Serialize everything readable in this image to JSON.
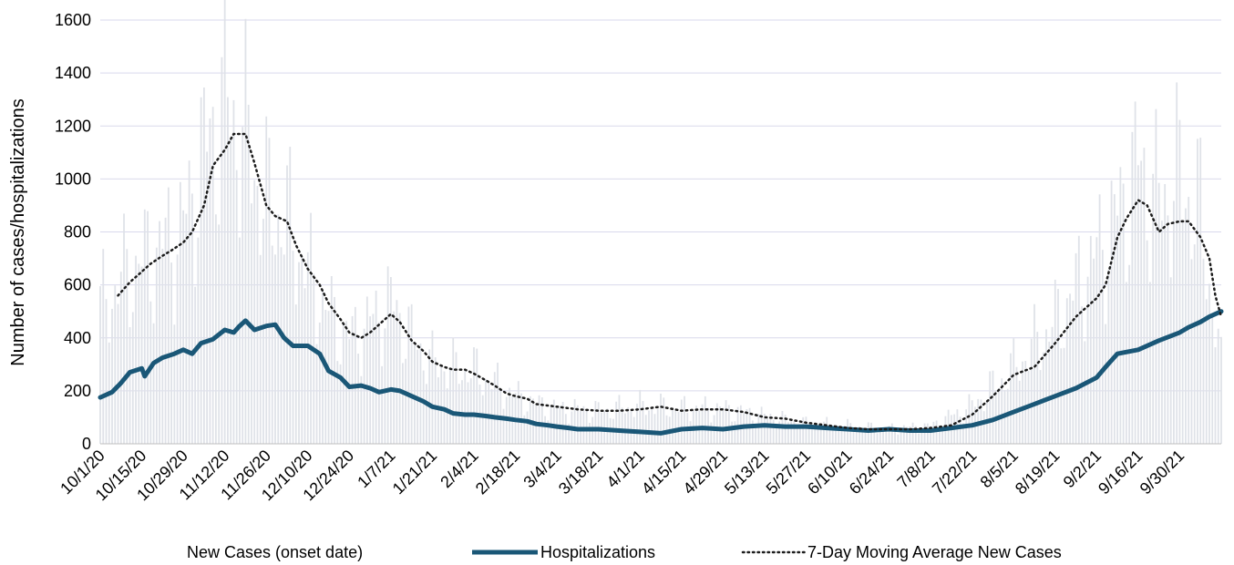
{
  "chart_data": {
    "type": "line",
    "title": "",
    "xlabel": "",
    "ylabel": "Number of cases/hospitalizations",
    "ylim": [
      0,
      1600
    ],
    "yticks": [
      0,
      200,
      400,
      600,
      800,
      1000,
      1200,
      1400,
      1600
    ],
    "grid": true,
    "legend_position": "bottom",
    "date_range": [
      "10/1/20",
      "10/14/21"
    ],
    "categories": [
      "10/1/20",
      "10/15/20",
      "10/29/20",
      "11/12/20",
      "11/26/20",
      "12/10/20",
      "12/24/20",
      "1/7/21",
      "1/21/21",
      "2/4/21",
      "2/18/21",
      "3/4/21",
      "3/18/21",
      "4/1/21",
      "4/15/21",
      "4/29/21",
      "5/13/21",
      "5/27/21",
      "6/10/21",
      "6/24/21",
      "7/8/21",
      "7/22/21",
      "8/5/21",
      "8/19/21",
      "9/2/21",
      "9/16/21",
      "9/30/21"
    ],
    "series": [
      {
        "name": "New Cases (onset date)",
        "style": "thin bars",
        "color": "#dfe2e8",
        "points": [
          [
            "10/1/20",
            530
          ],
          [
            "10/8/20",
            650
          ],
          [
            "10/15/20",
            720
          ],
          [
            "10/22/20",
            780
          ],
          [
            "10/29/20",
            850
          ],
          [
            "11/5/20",
            1150
          ],
          [
            "11/12/20",
            1350
          ],
          [
            "11/19/20",
            1200
          ],
          [
            "11/26/20",
            950
          ],
          [
            "12/3/20",
            880
          ],
          [
            "12/10/20",
            680
          ],
          [
            "12/17/20",
            520
          ],
          [
            "12/24/20",
            420
          ],
          [
            "12/31/20",
            480
          ],
          [
            "1/7/21",
            560
          ],
          [
            "1/14/21",
            420
          ],
          [
            "1/21/21",
            320
          ],
          [
            "1/28/21",
            300
          ],
          [
            "2/4/21",
            290
          ],
          [
            "2/11/21",
            240
          ],
          [
            "2/18/21",
            190
          ],
          [
            "2/25/21",
            160
          ],
          [
            "3/4/21",
            140
          ],
          [
            "3/18/21",
            130
          ],
          [
            "4/1/21",
            150
          ],
          [
            "4/15/21",
            140
          ],
          [
            "4/29/21",
            140
          ],
          [
            "5/13/21",
            110
          ],
          [
            "5/27/21",
            80
          ],
          [
            "6/10/21",
            70
          ],
          [
            "6/24/21",
            60
          ],
          [
            "7/8/21",
            70
          ],
          [
            "7/22/21",
            150
          ],
          [
            "8/5/21",
            300
          ],
          [
            "8/19/21",
            480
          ],
          [
            "9/2/21",
            750
          ],
          [
            "9/9/21",
            900
          ],
          [
            "9/16/21",
            1100
          ],
          [
            "9/23/21",
            950
          ],
          [
            "9/30/21",
            1050
          ],
          [
            "10/7/21",
            900
          ],
          [
            "10/14/21",
            300
          ]
        ]
      },
      {
        "name": "Hospitalizations",
        "style": "thick line",
        "color": "#1a5777",
        "points": [
          [
            "10/1/20",
            175
          ],
          [
            "10/5/20",
            195
          ],
          [
            "10/8/20",
            230
          ],
          [
            "10/11/20",
            270
          ],
          [
            "10/15/20",
            285
          ],
          [
            "10/16/20",
            255
          ],
          [
            "10/19/20",
            305
          ],
          [
            "10/22/20",
            325
          ],
          [
            "10/26/20",
            340
          ],
          [
            "10/29/20",
            355
          ],
          [
            "11/1/20",
            340
          ],
          [
            "11/4/20",
            380
          ],
          [
            "11/8/20",
            395
          ],
          [
            "11/12/20",
            430
          ],
          [
            "11/15/20",
            420
          ],
          [
            "11/17/20",
            445
          ],
          [
            "11/19/20",
            465
          ],
          [
            "11/22/20",
            430
          ],
          [
            "11/26/20",
            445
          ],
          [
            "11/29/20",
            450
          ],
          [
            "12/2/20",
            400
          ],
          [
            "12/5/20",
            370
          ],
          [
            "12/10/20",
            370
          ],
          [
            "12/14/20",
            340
          ],
          [
            "12/17/20",
            275
          ],
          [
            "12/21/20",
            250
          ],
          [
            "12/24/20",
            215
          ],
          [
            "12/28/20",
            220
          ],
          [
            "12/31/20",
            210
          ],
          [
            "1/3/21",
            195
          ],
          [
            "1/7/21",
            205
          ],
          [
            "1/10/21",
            200
          ],
          [
            "1/14/21",
            180
          ],
          [
            "1/18/21",
            160
          ],
          [
            "1/21/21",
            140
          ],
          [
            "1/25/21",
            130
          ],
          [
            "1/28/21",
            115
          ],
          [
            "2/1/21",
            110
          ],
          [
            "2/4/21",
            110
          ],
          [
            "2/8/21",
            105
          ],
          [
            "2/11/21",
            100
          ],
          [
            "2/15/21",
            95
          ],
          [
            "2/18/21",
            90
          ],
          [
            "2/22/21",
            85
          ],
          [
            "2/25/21",
            75
          ],
          [
            "3/1/21",
            70
          ],
          [
            "3/4/21",
            65
          ],
          [
            "3/8/21",
            60
          ],
          [
            "3/11/21",
            55
          ],
          [
            "3/18/21",
            55
          ],
          [
            "3/25/21",
            50
          ],
          [
            "4/1/21",
            45
          ],
          [
            "4/8/21",
            40
          ],
          [
            "4/15/21",
            55
          ],
          [
            "4/22/21",
            60
          ],
          [
            "4/29/21",
            55
          ],
          [
            "5/6/21",
            65
          ],
          [
            "5/13/21",
            70
          ],
          [
            "5/20/21",
            65
          ],
          [
            "5/27/21",
            65
          ],
          [
            "6/3/21",
            60
          ],
          [
            "6/10/21",
            55
          ],
          [
            "6/17/21",
            50
          ],
          [
            "6/24/21",
            55
          ],
          [
            "7/1/21",
            50
          ],
          [
            "7/8/21",
            50
          ],
          [
            "7/15/21",
            60
          ],
          [
            "7/22/21",
            70
          ],
          [
            "7/29/21",
            90
          ],
          [
            "8/5/21",
            120
          ],
          [
            "8/12/21",
            150
          ],
          [
            "8/19/21",
            180
          ],
          [
            "8/26/21",
            210
          ],
          [
            "9/2/21",
            250
          ],
          [
            "9/5/21",
            290
          ],
          [
            "9/9/21",
            340
          ],
          [
            "9/16/21",
            355
          ],
          [
            "9/23/21",
            390
          ],
          [
            "9/30/21",
            420
          ],
          [
            "10/3/21",
            440
          ],
          [
            "10/7/21",
            460
          ],
          [
            "10/10/21",
            480
          ],
          [
            "10/14/21",
            500
          ]
        ]
      },
      {
        "name": "7-Day Moving Average New Cases",
        "style": "dotted line",
        "color": "#1c1c1c",
        "points": [
          [
            "10/7/20",
            560
          ],
          [
            "10/11/20",
            610
          ],
          [
            "10/15/20",
            650
          ],
          [
            "10/18/20",
            680
          ],
          [
            "10/22/20",
            710
          ],
          [
            "10/25/20",
            730
          ],
          [
            "10/29/20",
            760
          ],
          [
            "11/1/20",
            800
          ],
          [
            "11/5/20",
            900
          ],
          [
            "11/8/20",
            1050
          ],
          [
            "11/12/20",
            1110
          ],
          [
            "11/15/20",
            1170
          ],
          [
            "11/19/20",
            1170
          ],
          [
            "11/22/20",
            1060
          ],
          [
            "11/26/20",
            900
          ],
          [
            "11/29/20",
            860
          ],
          [
            "12/3/20",
            840
          ],
          [
            "12/6/20",
            750
          ],
          [
            "12/10/20",
            660
          ],
          [
            "12/14/20",
            600
          ],
          [
            "12/17/20",
            530
          ],
          [
            "12/21/20",
            470
          ],
          [
            "12/24/20",
            420
          ],
          [
            "12/28/20",
            400
          ],
          [
            "12/31/20",
            420
          ],
          [
            "1/3/21",
            450
          ],
          [
            "1/7/21",
            490
          ],
          [
            "1/10/21",
            460
          ],
          [
            "1/14/21",
            390
          ],
          [
            "1/18/21",
            350
          ],
          [
            "1/21/21",
            310
          ],
          [
            "1/25/21",
            290
          ],
          [
            "1/28/21",
            280
          ],
          [
            "2/1/21",
            280
          ],
          [
            "2/4/21",
            265
          ],
          [
            "2/8/21",
            240
          ],
          [
            "2/11/21",
            220
          ],
          [
            "2/15/21",
            190
          ],
          [
            "2/18/21",
            180
          ],
          [
            "2/22/21",
            170
          ],
          [
            "2/25/21",
            150
          ],
          [
            "3/4/21",
            140
          ],
          [
            "3/11/21",
            130
          ],
          [
            "3/18/21",
            125
          ],
          [
            "3/25/21",
            125
          ],
          [
            "4/1/21",
            130
          ],
          [
            "4/8/21",
            140
          ],
          [
            "4/15/21",
            125
          ],
          [
            "4/22/21",
            130
          ],
          [
            "4/29/21",
            130
          ],
          [
            "5/6/21",
            120
          ],
          [
            "5/13/21",
            100
          ],
          [
            "5/20/21",
            95
          ],
          [
            "5/27/21",
            80
          ],
          [
            "6/3/21",
            70
          ],
          [
            "6/10/21",
            60
          ],
          [
            "6/17/21",
            55
          ],
          [
            "6/24/21",
            55
          ],
          [
            "7/1/21",
            55
          ],
          [
            "7/8/21",
            60
          ],
          [
            "7/15/21",
            70
          ],
          [
            "7/22/21",
            110
          ],
          [
            "7/29/21",
            180
          ],
          [
            "8/5/21",
            260
          ],
          [
            "8/12/21",
            290
          ],
          [
            "8/19/21",
            380
          ],
          [
            "8/26/21",
            480
          ],
          [
            "9/2/21",
            550
          ],
          [
            "9/5/21",
            600
          ],
          [
            "9/9/21",
            780
          ],
          [
            "9/12/21",
            850
          ],
          [
            "9/16/21",
            920
          ],
          [
            "9/19/21",
            900
          ],
          [
            "9/23/21",
            800
          ],
          [
            "9/26/21",
            830
          ],
          [
            "9/30/21",
            840
          ],
          [
            "10/3/21",
            840
          ],
          [
            "10/7/21",
            780
          ],
          [
            "10/10/21",
            700
          ],
          [
            "10/12/21",
            560
          ],
          [
            "10/14/21",
            480
          ]
        ]
      }
    ]
  }
}
